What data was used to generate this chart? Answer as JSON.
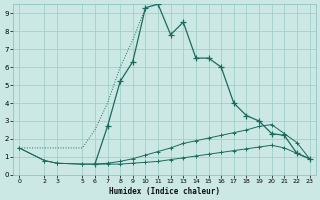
{
  "xlabel": "Humidex (Indice chaleur)",
  "bg_color": "#cce8e4",
  "grid_color": "#99ccc7",
  "line_color": "#1a6b5e",
  "xlim": [
    -0.5,
    23.5
  ],
  "ylim": [
    0,
    9.5
  ],
  "xticks": [
    0,
    2,
    3,
    5,
    6,
    7,
    8,
    9,
    10,
    11,
    12,
    13,
    14,
    15,
    16,
    17,
    18,
    19,
    20,
    21,
    22,
    23
  ],
  "yticks": [
    0,
    1,
    2,
    3,
    4,
    5,
    6,
    7,
    8,
    9
  ],
  "main_x": [
    6,
    7,
    8,
    9,
    10,
    11,
    12,
    13,
    14,
    15,
    16,
    17,
    18,
    19,
    20,
    21,
    22,
    23
  ],
  "main_y": [
    0.6,
    2.7,
    5.2,
    6.3,
    9.3,
    9.5,
    7.8,
    8.5,
    6.5,
    6.5,
    6.0,
    4.0,
    3.3,
    3.0,
    2.3,
    2.2,
    1.2,
    0.9
  ],
  "dotted_x": [
    0,
    2,
    3,
    5,
    6,
    7,
    8,
    9,
    10
  ],
  "dotted_y": [
    1.5,
    1.5,
    1.5,
    1.5,
    2.5,
    4.0,
    6.0,
    7.5,
    9.3
  ],
  "mid_x": [
    0,
    2,
    3,
    5,
    6,
    7,
    8,
    9,
    10,
    11,
    12,
    13,
    14,
    15,
    16,
    17,
    18,
    19,
    20,
    21,
    22,
    23
  ],
  "mid_y": [
    1.5,
    0.8,
    0.65,
    0.6,
    0.6,
    0.65,
    0.75,
    0.9,
    1.1,
    1.3,
    1.5,
    1.75,
    1.9,
    2.05,
    2.2,
    2.35,
    2.5,
    2.7,
    2.8,
    2.3,
    1.8,
    0.9
  ],
  "low_x": [
    0,
    2,
    3,
    5,
    6,
    7,
    8,
    9,
    10,
    11,
    12,
    13,
    14,
    15,
    16,
    17,
    18,
    19,
    20,
    21,
    22,
    23
  ],
  "low_y": [
    1.5,
    0.8,
    0.65,
    0.6,
    0.6,
    0.6,
    0.6,
    0.65,
    0.7,
    0.75,
    0.85,
    0.95,
    1.05,
    1.15,
    1.25,
    1.35,
    1.45,
    1.55,
    1.65,
    1.5,
    1.2,
    0.9
  ]
}
